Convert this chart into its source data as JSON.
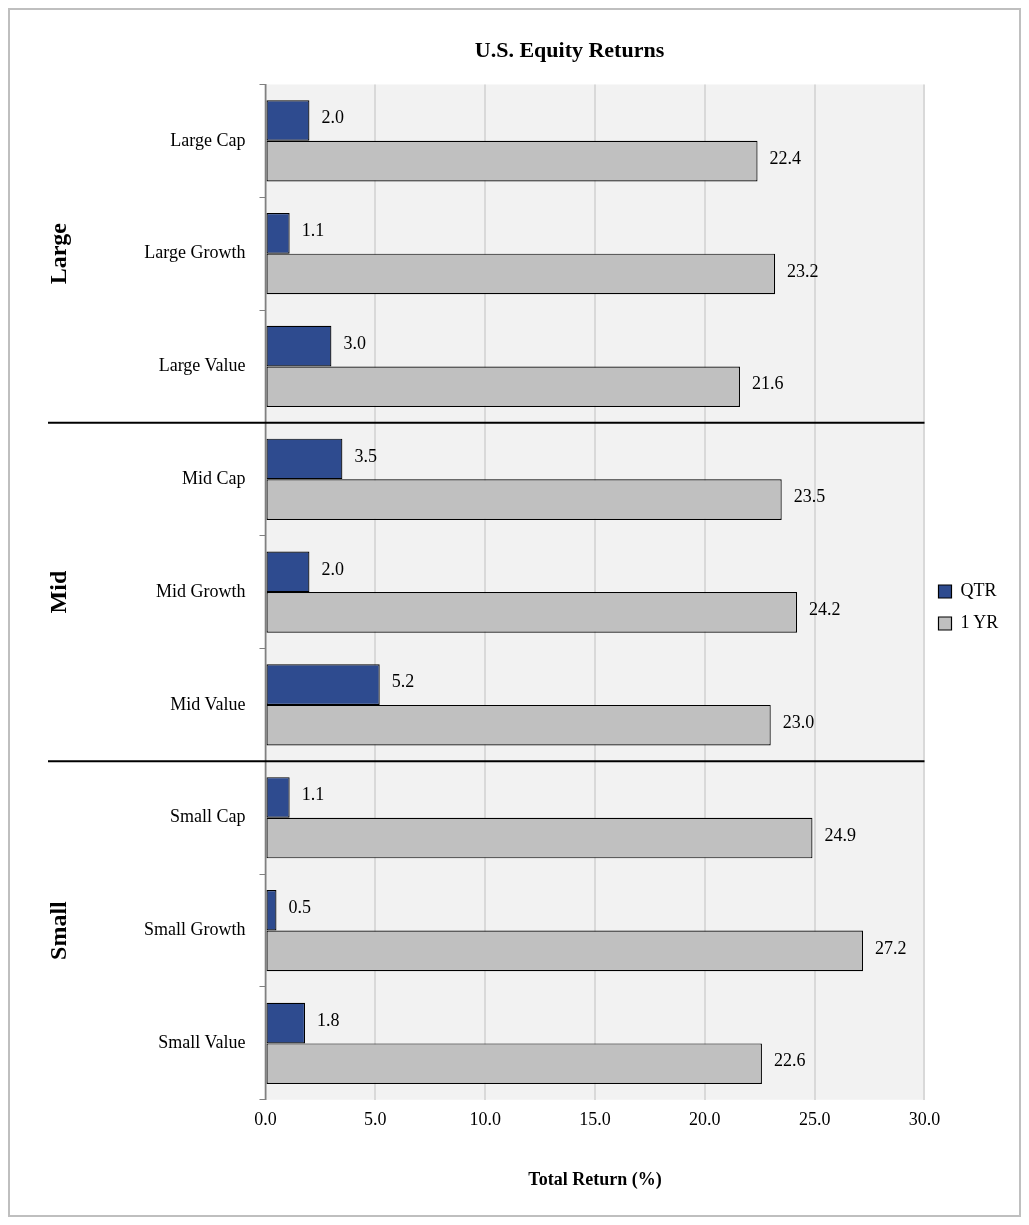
{
  "chart_data": {
    "type": "bar",
    "orientation": "horizontal",
    "title": "U.S. Equity Returns",
    "xlabel": "Total Return (%)",
    "categories": [
      "Large Cap",
      "Large Growth",
      "Large Value",
      "Mid Cap",
      "Mid Growth",
      "Mid Value",
      "Small Cap",
      "Small Growth",
      "Small Value"
    ],
    "series": [
      {
        "name": "QTR",
        "color": "#2e4b8f",
        "values": [
          2.0,
          1.1,
          3.0,
          3.5,
          2.0,
          5.2,
          1.1,
          0.5,
          1.8
        ],
        "value_labels": [
          "2.0",
          "1.1",
          "3.0",
          "3.5",
          "2.0",
          "5.2",
          "1.1",
          "0.5",
          "1.8"
        ]
      },
      {
        "name": "1 YR",
        "color": "#c0c0c0",
        "values": [
          22.4,
          23.2,
          21.6,
          23.5,
          24.2,
          23.0,
          24.9,
          27.2,
          22.6
        ],
        "value_labels": [
          "22.4",
          "23.2",
          "21.6",
          "23.5",
          "24.2",
          "23.0",
          "24.9",
          "27.2",
          "22.6"
        ]
      }
    ],
    "xlim": [
      0,
      30
    ],
    "xticks": [
      {
        "value": 0,
        "label": "0.0"
      },
      {
        "value": 5,
        "label": "5.0"
      },
      {
        "value": 10,
        "label": "10.0"
      },
      {
        "value": 15,
        "label": "15.0"
      },
      {
        "value": 20,
        "label": "20.0"
      },
      {
        "value": 25,
        "label": "25.0"
      },
      {
        "value": 30,
        "label": "30.0"
      }
    ],
    "grid": "x",
    "legend": "right",
    "annotations": [
      "Large",
      "Mid",
      "Small"
    ]
  }
}
